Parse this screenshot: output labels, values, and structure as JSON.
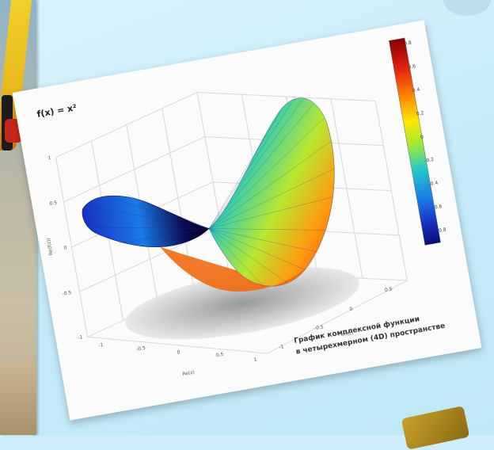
{
  "plot": {
    "function_label": "f(x) = x²",
    "caption_line1": "График комплексной функции",
    "caption_line2": "в четырехмерном (4D) пространстве"
  },
  "colorbar": {
    "ticks": [
      "0.8",
      "0.6",
      "0.4",
      "0.2",
      "0",
      "-0.2",
      "-0.4",
      "-0.6",
      "-0.8"
    ],
    "colors": [
      "#8b0000",
      "#e02010",
      "#ff8800",
      "#ffe800",
      "#9be83a",
      "#20c8c8",
      "#1a7ae8",
      "#1830c0",
      "#0a0a78"
    ]
  },
  "axes": {
    "z_ticks": [
      "1",
      "0.5",
      "0",
      "-0.5",
      "-1"
    ],
    "x_ticks": [
      "-1",
      "-0.5",
      "0",
      "0.5",
      "1"
    ],
    "y_ticks": [
      "-1",
      "-0.5",
      "0",
      "0.5"
    ],
    "z_label": "Re(f(z))",
    "x_label": "Re(z)",
    "y_label": "Im(z)"
  }
}
